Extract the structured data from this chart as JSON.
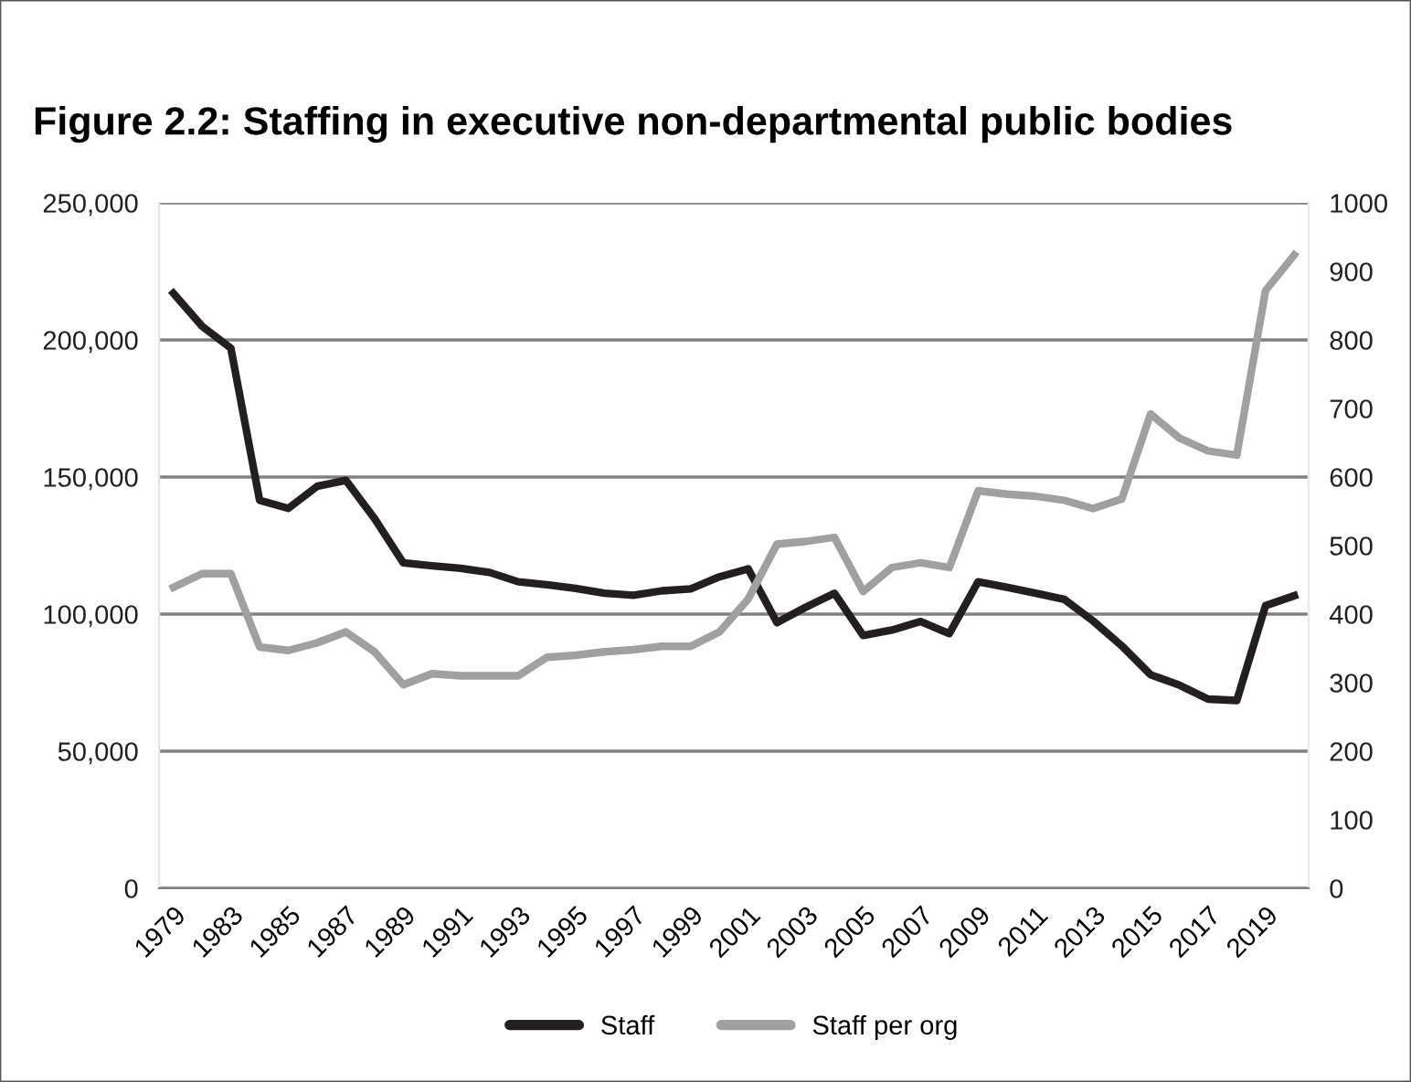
{
  "chart_data": {
    "type": "line",
    "title": "Figure 2.2: Staffing in executive non-departmental public bodies",
    "categories": [
      "1979",
      null,
      "1983",
      null,
      "1985",
      null,
      "1987",
      null,
      "1989",
      null,
      "1991",
      null,
      "1993",
      null,
      "1995",
      null,
      "1997",
      null,
      "1999",
      null,
      "2001",
      null,
      "2003",
      null,
      "2005",
      null,
      "2007",
      null,
      "2009",
      null,
      "2011",
      null,
      "2013",
      null,
      "2015",
      null,
      "2017",
      null,
      "2019",
      null
    ],
    "series": [
      {
        "name": "Staff",
        "color": "#231f20",
        "values": [
          217000,
          205000,
          197000,
          141500,
          138600,
          146600,
          148800,
          134800,
          118700,
          117600,
          116700,
          115200,
          111800,
          110700,
          109400,
          107600,
          106900,
          108500,
          109200,
          113600,
          116500,
          96900,
          102500,
          107600,
          92200,
          94200,
          97300,
          92900,
          111800,
          109800,
          107600,
          105400,
          97500,
          88400,
          77900,
          74100,
          69000,
          68500,
          103100,
          106700
        ]
      },
      {
        "name": "Staff per org",
        "color": "#a0a0a2",
        "axis": "y2",
        "values": [
          439,
          459,
          459,
          352,
          347,
          358,
          374,
          345,
          297,
          313,
          310,
          310,
          310,
          337,
          340,
          345,
          348,
          353,
          353,
          374,
          422,
          502,
          506,
          512,
          433,
          468,
          475,
          468,
          580,
          575,
          572,
          566,
          554,
          568,
          692,
          657,
          638,
          632,
          872,
          924
        ]
      }
    ],
    "ylim": [
      0,
      250000
    ],
    "yticks": [
      {
        "value": 0,
        "label": "0"
      },
      {
        "value": 50000,
        "label": "50,000"
      },
      {
        "value": 100000,
        "label": "100,000"
      },
      {
        "value": 150000,
        "label": "150,000"
      },
      {
        "value": 200000,
        "label": "200,000"
      },
      {
        "value": 250000,
        "label": "250,000"
      }
    ],
    "y2lim": [
      0,
      1000
    ],
    "y2ticks": [
      0,
      100,
      200,
      300,
      400,
      500,
      600,
      700,
      800,
      900,
      1000
    ],
    "grid": "y",
    "legend": "bottom",
    "marker": "none",
    "line_style": "solid"
  }
}
